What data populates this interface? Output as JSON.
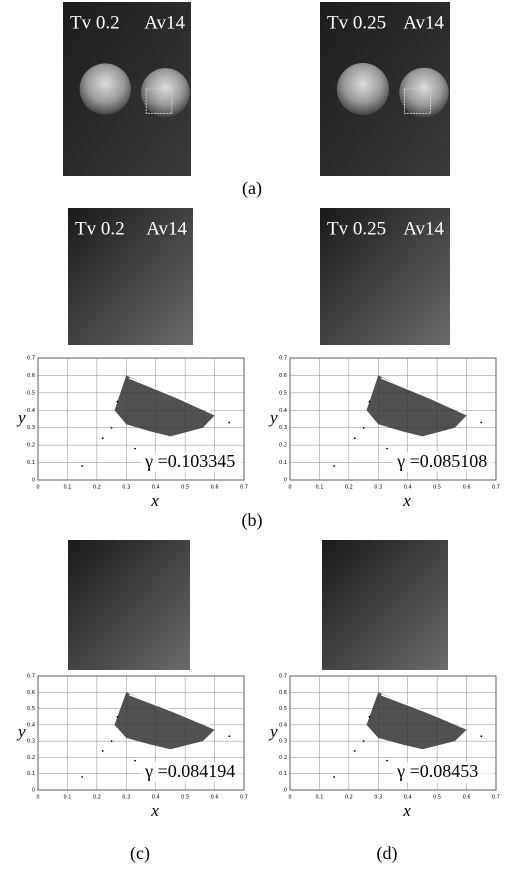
{
  "row_a": {
    "images": [
      {
        "tv": "Tv 0.2",
        "av": "Av14"
      },
      {
        "tv": "Tv 0.25",
        "av": "Av14"
      }
    ],
    "caption": "(a)"
  },
  "row_b": {
    "images": [
      {
        "tv": "Tv 0.2",
        "av": "Av14"
      },
      {
        "tv": "Tv 0.25",
        "av": "Av14"
      }
    ],
    "plots": [
      {
        "gamma": "γ =0.103345"
      },
      {
        "gamma": "γ =0.085108"
      }
    ],
    "caption": "(b)"
  },
  "row_cd": {
    "plots": [
      {
        "gamma": "γ =0.084194",
        "caption": "(c)"
      },
      {
        "gamma": "γ =0.08453",
        "caption": "(d)"
      }
    ]
  },
  "axes": {
    "x_label": "x",
    "y_label": "y",
    "ticks": [
      "0",
      "0.1",
      "0.2",
      "0.3",
      "0.4",
      "0.5",
      "0.6",
      "0.7"
    ]
  }
}
